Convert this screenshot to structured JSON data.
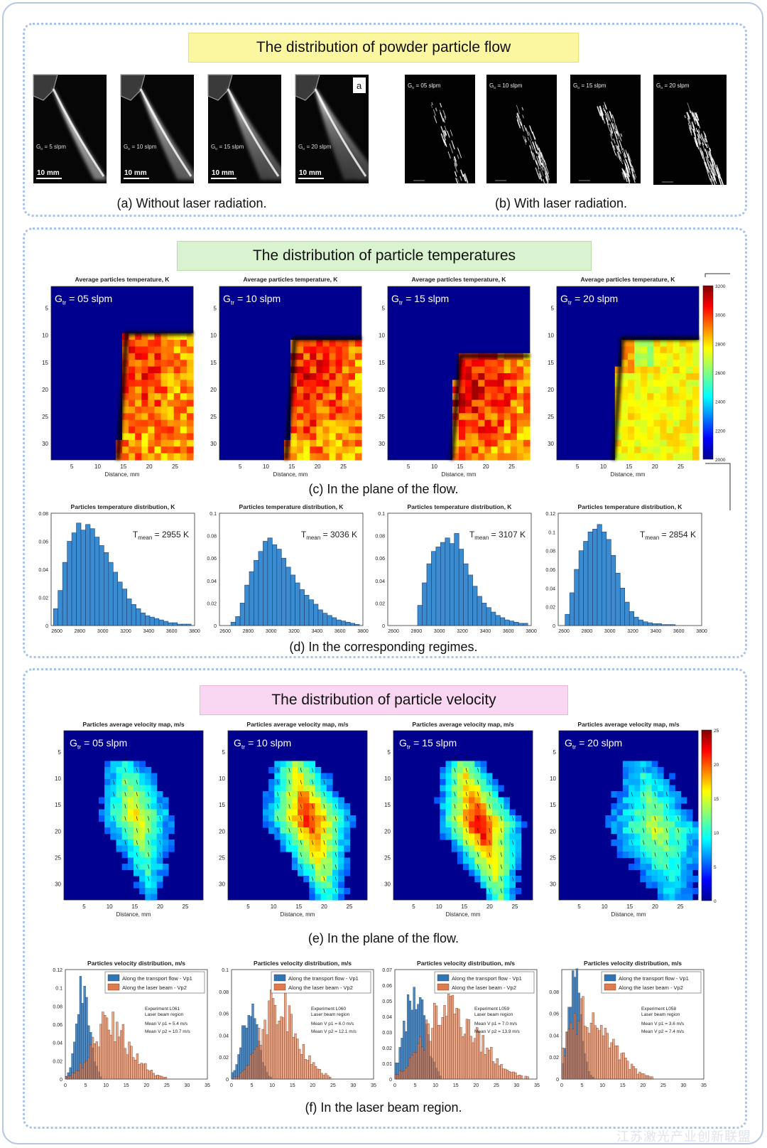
{
  "sections": {
    "powder": {
      "title": "The distribution of powder particle flow",
      "caption_a": "(a) Without laser radiation.",
      "caption_b": "(b) With laser radiation.",
      "panels_a": [
        {
          "label": "Gtr = 5 slpm",
          "scale": "10 mm"
        },
        {
          "label": "Gtr = 10 slpm",
          "scale": "10 mm"
        },
        {
          "label": "Gtr = 15 slpm",
          "scale": "10 mm"
        },
        {
          "label": "Gtr = 20 slpm",
          "scale": "10 mm",
          "tag": "a"
        }
      ],
      "panels_b": [
        {
          "label": "Gtr = 05 slpm"
        },
        {
          "label": "Gtr = 10 slpm"
        },
        {
          "label": "Gtr = 15 slpm"
        },
        {
          "label": "Gtr = 20 slpm"
        }
      ]
    },
    "temperature": {
      "title": "The distribution of particle temperatures",
      "caption_c": "(c) In the plane of the flow.",
      "caption_d": "(d) In the corresponding regimes."
    },
    "velocity": {
      "title": "The distribution of particle velocity",
      "caption_e": "(e) In the plane of the flow.",
      "caption_f": "(f) In the laser beam region."
    }
  },
  "watermark": "江苏激光产业创新联盟",
  "chart_data": [
    {
      "id": "c",
      "type": "heatmap",
      "title": "Average particles temperature, K",
      "xlabel": "Distance, mm",
      "x_ticks": [
        5,
        10,
        15,
        20,
        25
      ],
      "y_ticks": [
        5,
        10,
        15,
        20,
        25,
        30
      ],
      "colorbar_ticks": [
        2000,
        2200,
        2400,
        2600,
        2800,
        3000,
        3200
      ],
      "panels": [
        "Gtr = 05 slpm",
        "Gtr = 10 slpm",
        "Gtr = 15 slpm",
        "Gtr = 20 slpm"
      ]
    },
    {
      "id": "d",
      "type": "bar",
      "title": "Particles temperature distribution, K",
      "x_ticks": [
        2600,
        2800,
        3000,
        3200,
        3400,
        3600,
        3800
      ],
      "xlim": [
        2550,
        3800
      ],
      "panels": [
        {
          "annotation": "Tmean = 2955 K",
          "ylim": [
            0,
            0.08
          ],
          "y_ticks": [
            0,
            0.02,
            0.04,
            0.06,
            0.08
          ],
          "bin_width": 40,
          "x": [
            2590,
            2630,
            2670,
            2710,
            2750,
            2790,
            2830,
            2870,
            2910,
            2950,
            2990,
            3030,
            3070,
            3110,
            3150,
            3190,
            3230,
            3270,
            3310,
            3350,
            3390,
            3430,
            3470,
            3510,
            3550,
            3590,
            3630,
            3670,
            3710,
            3750
          ],
          "values": [
            0.012,
            0.025,
            0.045,
            0.06,
            0.066,
            0.073,
            0.068,
            0.072,
            0.069,
            0.063,
            0.057,
            0.052,
            0.045,
            0.038,
            0.031,
            0.026,
            0.019,
            0.015,
            0.012,
            0.009,
            0.007,
            0.006,
            0.005,
            0.004,
            0.003,
            0.002,
            0.002,
            0.001,
            0.001,
            0.001
          ]
        },
        {
          "annotation": "Tmean = 3036 K",
          "ylim": [
            0,
            0.1
          ],
          "y_ticks": [
            0,
            0.02,
            0.04,
            0.06,
            0.08,
            0.1
          ],
          "bin_width": 40,
          "x": [
            2670,
            2710,
            2750,
            2790,
            2830,
            2870,
            2910,
            2950,
            2990,
            3030,
            3070,
            3110,
            3150,
            3190,
            3230,
            3270,
            3310,
            3350,
            3390,
            3430,
            3470,
            3510,
            3550,
            3590,
            3630,
            3670,
            3710,
            3750
          ],
          "values": [
            0.003,
            0.008,
            0.02,
            0.036,
            0.048,
            0.058,
            0.066,
            0.075,
            0.078,
            0.072,
            0.068,
            0.06,
            0.052,
            0.045,
            0.038,
            0.032,
            0.027,
            0.023,
            0.019,
            0.014,
            0.011,
            0.009,
            0.007,
            0.005,
            0.004,
            0.003,
            0.002,
            0.001
          ]
        },
        {
          "annotation": "Tmean = 3107 K",
          "ylim": [
            0,
            0.1
          ],
          "y_ticks": [
            0,
            0.02,
            0.04,
            0.06,
            0.08,
            0.1
          ],
          "bin_width": 40,
          "x": [
            2830,
            2870,
            2910,
            2950,
            2990,
            3030,
            3070,
            3110,
            3150,
            3190,
            3230,
            3270,
            3310,
            3350,
            3390,
            3430,
            3470,
            3510,
            3550,
            3590,
            3630,
            3670,
            3710,
            3750
          ],
          "values": [
            0.018,
            0.038,
            0.055,
            0.066,
            0.07,
            0.074,
            0.078,
            0.073,
            0.082,
            0.068,
            0.055,
            0.045,
            0.035,
            0.026,
            0.02,
            0.016,
            0.012,
            0.009,
            0.007,
            0.005,
            0.004,
            0.003,
            0.002,
            0.002
          ]
        },
        {
          "annotation": "Tmean = 2854 K",
          "ylim": [
            0,
            0.12
          ],
          "y_ticks": [
            0,
            0.02,
            0.04,
            0.06,
            0.08,
            0.1,
            0.12
          ],
          "bin_width": 40,
          "x": [
            2630,
            2670,
            2710,
            2750,
            2790,
            2830,
            2870,
            2910,
            2950,
            2990,
            3030,
            3070,
            3110,
            3150,
            3190,
            3230,
            3270,
            3310,
            3350,
            3390,
            3430,
            3470,
            3510,
            3550
          ],
          "values": [
            0.012,
            0.035,
            0.06,
            0.08,
            0.09,
            0.1,
            0.103,
            0.108,
            0.1,
            0.092,
            0.075,
            0.056,
            0.04,
            0.025,
            0.015,
            0.009,
            0.006,
            0.004,
            0.003,
            0.002,
            0.002,
            0.001,
            0.001,
            0.001
          ]
        }
      ]
    },
    {
      "id": "e",
      "type": "heatmap",
      "title": "Particles average velocity map, m/s",
      "xlabel": "Distance, mm",
      "x_ticks": [
        5,
        10,
        15,
        20,
        25
      ],
      "y_ticks": [
        5,
        10,
        15,
        20,
        25,
        30
      ],
      "colorbar_ticks": [
        0,
        5,
        10,
        15,
        20,
        25
      ],
      "panels": [
        "Gtr = 05 slpm",
        "Gtr = 10 slpm",
        "Gtr = 15 slpm",
        "Gtr = 20 slpm"
      ]
    },
    {
      "id": "f",
      "type": "bar",
      "title": "Particles velocity distribution, m/s",
      "x_ticks": [
        0,
        5,
        10,
        15,
        20,
        25,
        30,
        35
      ],
      "xlim": [
        0,
        35
      ],
      "legend": [
        "Along the transport flow - Vp1",
        "Along the laser beam - Vp2"
      ],
      "colors": {
        "vp1": "#2e75b6",
        "vp2": "#e07a4a"
      },
      "panels": [
        {
          "ylim": [
            0,
            0.12
          ],
          "y_ticks": [
            0,
            0.02,
            0.04,
            0.06,
            0.08,
            0.1,
            0.12
          ],
          "experiment": "Experiment L061",
          "region": "Laser beam region",
          "mean1": "Mean V p1 = 5.4 m/s",
          "mean2": "Mean V p2 = 10.7 m/s",
          "vp1_center": 4.5,
          "vp1_width": 1.6,
          "vp1_peak": 0.11,
          "vp2_center": 10.5,
          "vp2_width": 4.0,
          "vp2_peak": 0.065
        },
        {
          "ylim": [
            0,
            0.1
          ],
          "y_ticks": [
            0,
            0.02,
            0.04,
            0.06,
            0.08,
            0.1
          ],
          "experiment": "Experiment L060",
          "region": "Laser beam region",
          "mean1": "Mean V p1 = 6.0 m/s",
          "mean2": "Mean V p2 = 12.1 m/s",
          "vp1_center": 4.5,
          "vp1_width": 2.0,
          "vp1_peak": 0.065,
          "vp2_center": 11.0,
          "vp2_width": 3.8,
          "vp2_peak": 0.075
        },
        {
          "ylim": [
            0,
            0.07
          ],
          "y_ticks": [
            0,
            0.01,
            0.02,
            0.03,
            0.04,
            0.05,
            0.06,
            0.07
          ],
          "experiment": "Experiment L059",
          "region": "Laser beam region",
          "mean1": "Mean V p1 = 7.0 m/s",
          "mean2": "Mean V p2 = 13.9 m/s",
          "vp1_center": 5.0,
          "vp1_width": 2.5,
          "vp1_peak": 0.06,
          "vp2_center": 13.0,
          "vp2_width": 5.5,
          "vp2_peak": 0.05
        },
        {
          "ylim": [
            0,
            0.1
          ],
          "y_ticks": [
            0,
            0.02,
            0.04,
            0.06,
            0.08
          ],
          "experiment": "Experiment L058",
          "region": "Laser beam region",
          "mean1": "Mean V p1 = 3.6 m/s",
          "mean2": "Mean V p2 = 7.4 m/s",
          "vp1_center": 3.2,
          "vp1_width": 1.6,
          "vp1_peak": 0.093,
          "vp2_center": 6.0,
          "vp2_width": 4.5,
          "vp2_peak": 0.065
        }
      ]
    }
  ]
}
